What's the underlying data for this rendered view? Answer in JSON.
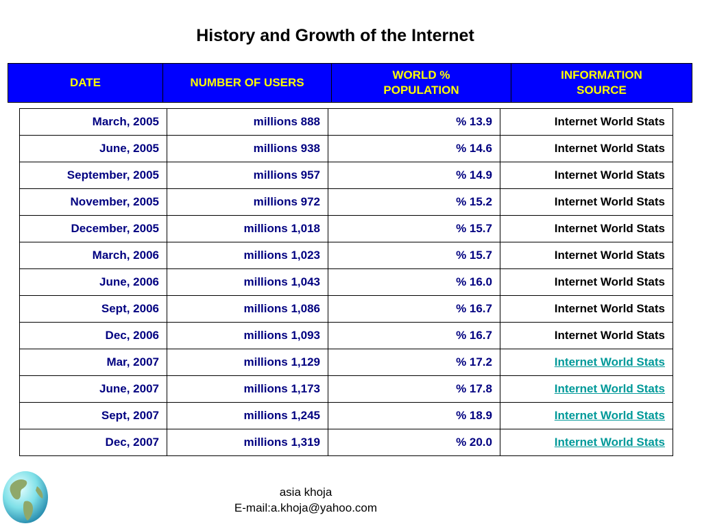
{
  "title": "History and Growth of the Internet",
  "header": {
    "columns": [
      "DATE",
      "NUMBER OF USERS",
      "WORLD %\nPOPULATION",
      "INFORMATION\nSOURCE"
    ]
  },
  "rows": [
    {
      "date": "March, 2005",
      "users": "millions 888",
      "pct": "% 13.9",
      "source": "Internet World Stats",
      "link": false
    },
    {
      "date": "June, 2005",
      "users": "millions 938",
      "pct": "% 14.6",
      "source": "Internet World Stats",
      "link": false
    },
    {
      "date": "September, 2005",
      "users": "millions 957",
      "pct": "% 14.9",
      "source": "Internet World Stats",
      "link": false
    },
    {
      "date": "November, 2005",
      "users": "millions 972",
      "pct": "% 15.2",
      "source": "Internet World Stats",
      "link": false
    },
    {
      "date": "December, 2005",
      "users": "millions 1,018",
      "pct": "% 15.7",
      "source": "Internet World Stats",
      "link": false
    },
    {
      "date": "March, 2006",
      "users": "millions 1,023",
      "pct": "% 15.7",
      "source": "Internet World Stats",
      "link": false
    },
    {
      "date": "June, 2006",
      "users": "millions 1,043",
      "pct": "% 16.0",
      "source": "Internet World Stats",
      "link": false
    },
    {
      "date": "Sept, 2006",
      "users": "millions 1,086",
      "pct": "% 16.7",
      "source": "Internet World Stats",
      "link": false
    },
    {
      "date": "Dec, 2006",
      "users": "millions 1,093",
      "pct": "% 16.7",
      "source": "Internet World Stats",
      "link": false
    },
    {
      "date": "Mar, 2007",
      "users": "millions 1,129",
      "pct": "% 17.2",
      "source": "Internet World Stats",
      "link": true
    },
    {
      "date": "June, 2007",
      "users": "millions 1,173",
      "pct": "% 17.8",
      "source": "Internet World Stats",
      "link": true
    },
    {
      "date": "Sept, 2007",
      "users": "millions 1,245",
      "pct": "% 18.9",
      "source": "Internet World Stats",
      "link": true
    },
    {
      "date": "Dec, 2007",
      "users": "millions 1,319",
      "pct": "% 20.0",
      "source": "Internet World Stats",
      "link": true
    }
  ],
  "footer": {
    "name": "asia khoja",
    "email": "E-mail:a.khoja@yahoo.com"
  },
  "colors": {
    "header_bg": "#0000ff",
    "header_text": "#ffff00",
    "data_text": "#000080",
    "link": "#009999"
  },
  "icons": {
    "globe": "globe-icon"
  }
}
